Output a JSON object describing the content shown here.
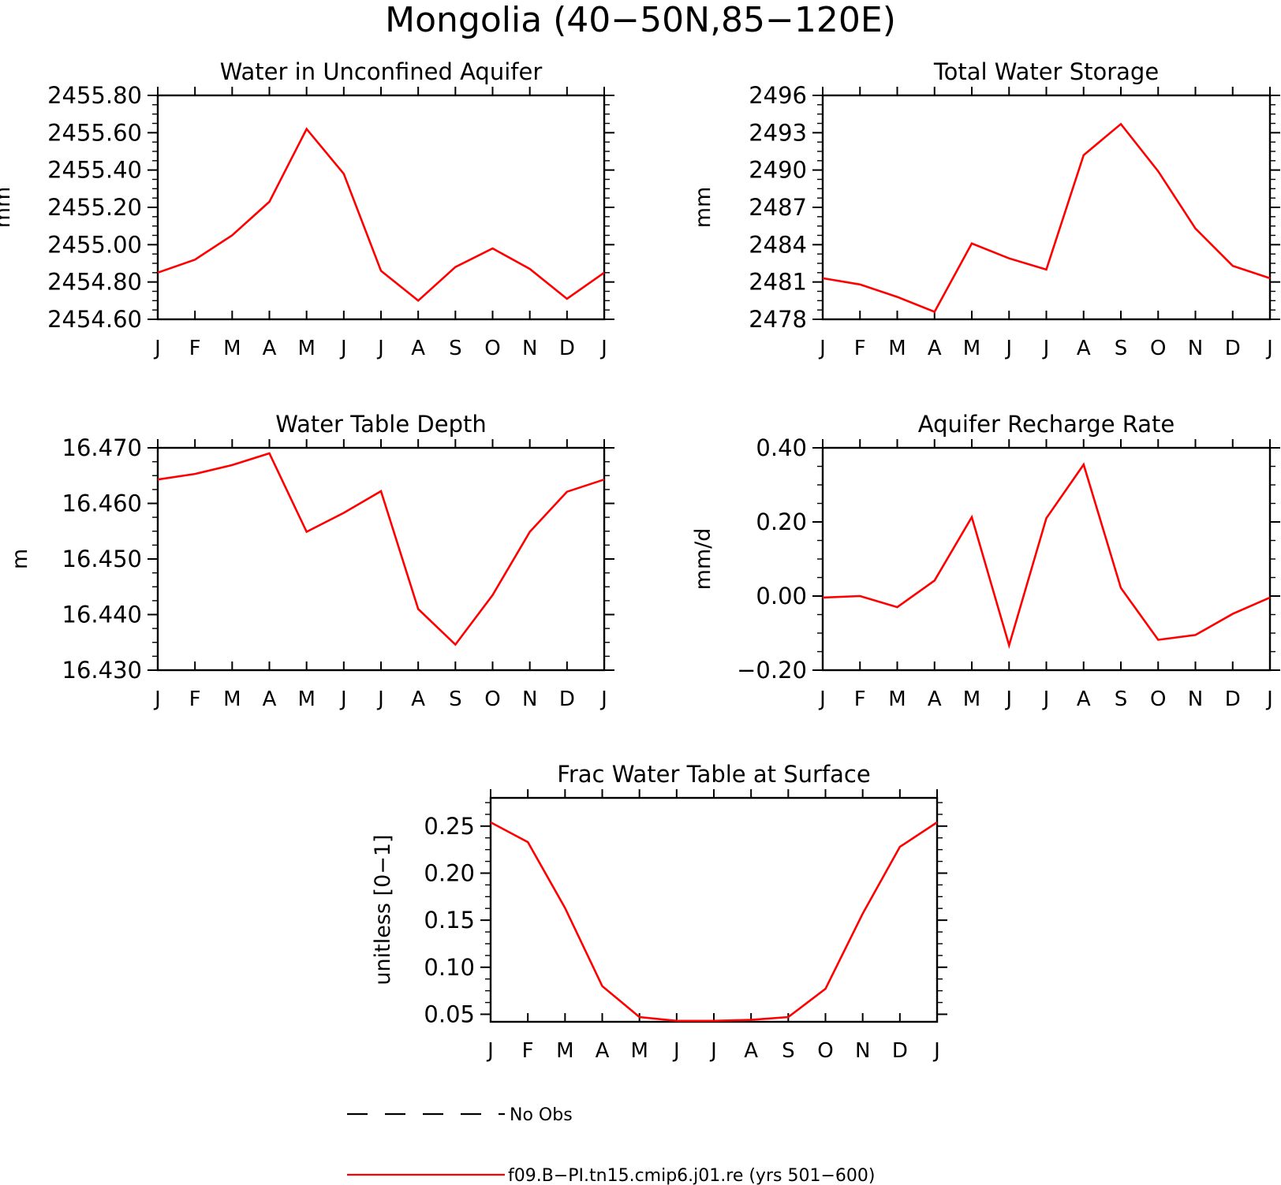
{
  "figure": {
    "title": "Mongolia (40−50N,85−120E)",
    "line_color": "#ff0000"
  },
  "legend": {
    "entries": [
      {
        "label": "No Obs",
        "style": "dashed",
        "color": "#000000"
      },
      {
        "label": "f09.B−PI.tn15.cmip6.j01.re (yrs 501−600)",
        "style": "solid",
        "color": "#ff0000"
      }
    ]
  },
  "chart_data": [
    {
      "type": "line",
      "title": "Water in Unconfined Aquifer",
      "ylabel": "mm",
      "xlabel": "",
      "categories": [
        "J",
        "F",
        "M",
        "A",
        "M",
        "J",
        "J",
        "A",
        "S",
        "O",
        "N",
        "D",
        "J"
      ],
      "ylim": [
        2454.6,
        2455.8
      ],
      "yticks": [
        "2454.60",
        "2454.80",
        "2455.00",
        "2455.20",
        "2455.40",
        "2455.60",
        "2455.80"
      ],
      "series": [
        {
          "values": [
            2454.85,
            2454.92,
            2455.05,
            2455.23,
            2455.62,
            2455.38,
            2454.86,
            2454.7,
            2454.88,
            2454.98,
            2454.87,
            2454.71,
            2454.85
          ]
        }
      ]
    },
    {
      "type": "line",
      "title": "Total Water Storage",
      "ylabel": "mm",
      "xlabel": "",
      "categories": [
        "J",
        "F",
        "M",
        "A",
        "M",
        "J",
        "J",
        "A",
        "S",
        "O",
        "N",
        "D",
        "J"
      ],
      "ylim": [
        2478,
        2496
      ],
      "yticks": [
        "2478",
        "2481",
        "2484",
        "2487",
        "2490",
        "2493",
        "2496"
      ],
      "series": [
        {
          "values": [
            2481.3,
            2480.8,
            2479.8,
            2478.6,
            2484.1,
            2482.9,
            2482.0,
            2491.2,
            2493.7,
            2489.9,
            2485.3,
            2482.3,
            2481.3
          ]
        }
      ]
    },
    {
      "type": "line",
      "title": "Water Table Depth",
      "ylabel": "m",
      "xlabel": "",
      "categories": [
        "J",
        "F",
        "M",
        "A",
        "M",
        "J",
        "J",
        "A",
        "S",
        "O",
        "N",
        "D",
        "J"
      ],
      "ylim": [
        16.43,
        16.47
      ],
      "yticks": [
        "16.430",
        "16.440",
        "16.450",
        "16.460",
        "16.470"
      ],
      "series": [
        {
          "values": [
            16.4643,
            16.4653,
            16.4669,
            16.469,
            16.4549,
            16.4583,
            16.4622,
            16.441,
            16.4346,
            16.4435,
            16.4549,
            16.4621,
            16.4643
          ]
        }
      ]
    },
    {
      "type": "line",
      "title": "Aquifer Recharge Rate",
      "ylabel": "mm/d",
      "xlabel": "",
      "categories": [
        "J",
        "F",
        "M",
        "A",
        "M",
        "J",
        "J",
        "A",
        "S",
        "O",
        "N",
        "D",
        "J"
      ],
      "ylim": [
        -0.2,
        0.4
      ],
      "yticks": [
        "−0.20",
        "0.00",
        "0.20",
        "0.40"
      ],
      "series": [
        {
          "values": [
            -0.004,
            0.0,
            -0.03,
            0.042,
            0.213,
            -0.133,
            0.21,
            0.355,
            0.022,
            -0.118,
            -0.105,
            -0.048,
            -0.004
          ]
        }
      ]
    },
    {
      "type": "line",
      "title": "Frac Water Table at Surface",
      "ylabel": "unitless [0−1]",
      "xlabel": "",
      "categories": [
        "J",
        "F",
        "M",
        "A",
        "M",
        "J",
        "J",
        "A",
        "S",
        "O",
        "N",
        "D",
        "J"
      ],
      "ylim": [
        0.042,
        0.28
      ],
      "yticks": [
        "0.05",
        "0.10",
        "0.15",
        "0.20",
        "0.25"
      ],
      "series": [
        {
          "values": [
            0.254,
            0.233,
            0.163,
            0.08,
            0.047,
            0.043,
            0.043,
            0.044,
            0.047,
            0.077,
            0.157,
            0.228,
            0.254
          ]
        }
      ]
    }
  ]
}
